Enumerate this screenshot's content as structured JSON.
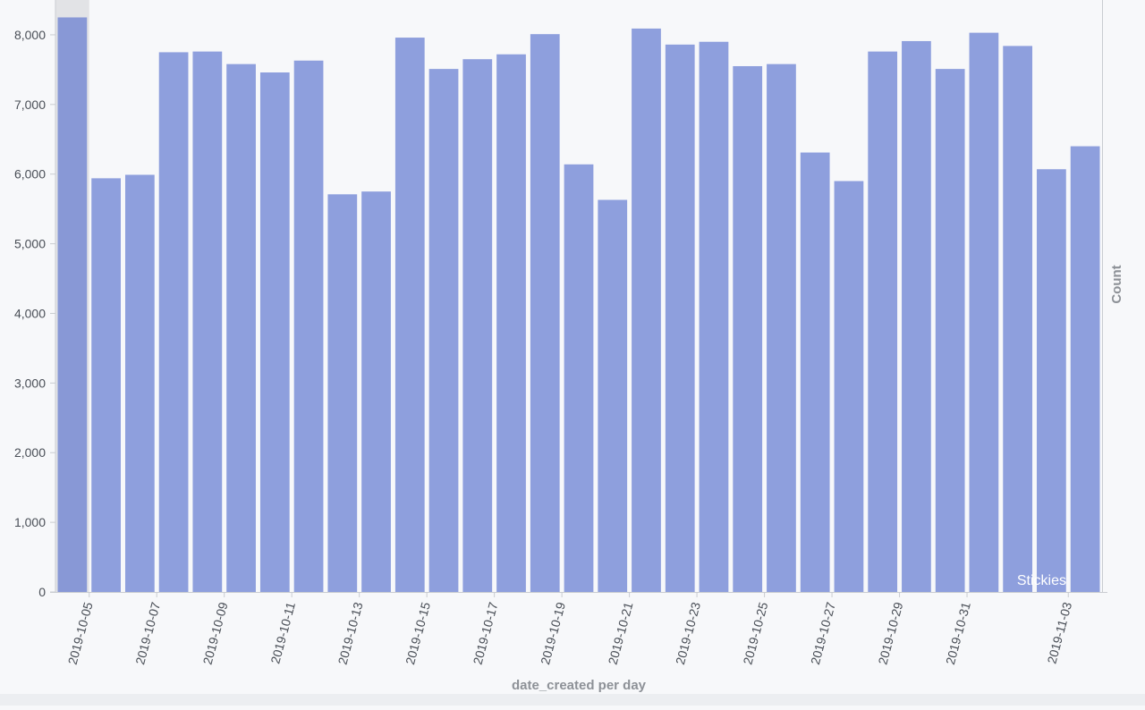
{
  "chart_data": {
    "type": "bar",
    "xlabel": "date_created per day",
    "ylabel": "",
    "right_label": "Count",
    "ylim": [
      0,
      8500
    ],
    "yticks": [
      0,
      1000,
      2000,
      3000,
      4000,
      5000,
      6000,
      7000,
      8000
    ],
    "ytick_labels": [
      "0",
      "1,000",
      "2,000",
      "3,000",
      "4,000",
      "5,000",
      "6,000",
      "7,000",
      "8,000"
    ],
    "categories": [
      "2019-10-05",
      "2019-10-06",
      "2019-10-07",
      "2019-10-08",
      "2019-10-09",
      "2019-10-10",
      "2019-10-11",
      "2019-10-12",
      "2019-10-13",
      "2019-10-14",
      "2019-10-15",
      "2019-10-16",
      "2019-10-17",
      "2019-10-18",
      "2019-10-19",
      "2019-10-20",
      "2019-10-21",
      "2019-10-22",
      "2019-10-23",
      "2019-10-24",
      "2019-10-25",
      "2019-10-26",
      "2019-10-27",
      "2019-10-28",
      "2019-10-29",
      "2019-10-30",
      "2019-10-31",
      "2019-11-01",
      "2019-11-02",
      "2019-11-03",
      "2019-11-04"
    ],
    "values": [
      8250,
      5940,
      5990,
      7750,
      7760,
      7580,
      7460,
      7630,
      5710,
      5750,
      7960,
      7510,
      7650,
      7720,
      8010,
      6140,
      5630,
      8090,
      7860,
      7900,
      7550,
      7580,
      6310,
      5900,
      7760,
      7910,
      7510,
      8030,
      7840,
      6070,
      6400
    ],
    "xtick_labels": [
      "2019-10-05",
      "2019-10-07",
      "2019-10-09",
      "2019-10-11",
      "2019-10-13",
      "2019-10-15",
      "2019-10-17",
      "2019-10-19",
      "2019-10-21",
      "2019-10-23",
      "2019-10-25",
      "2019-10-27",
      "2019-10-29",
      "2019-10-31",
      "2019-11-03"
    ],
    "annotation": "Stickies",
    "highlighted_category": "2019-10-05",
    "colors": {
      "bar": "#8e9fdd",
      "bar_highlight": "#8898d6",
      "highlight_band": "#e2e3e6",
      "axis": "#c9ccd1",
      "text": "#4a4f57",
      "axis_title": "#8d9197"
    },
    "grid": false
  }
}
